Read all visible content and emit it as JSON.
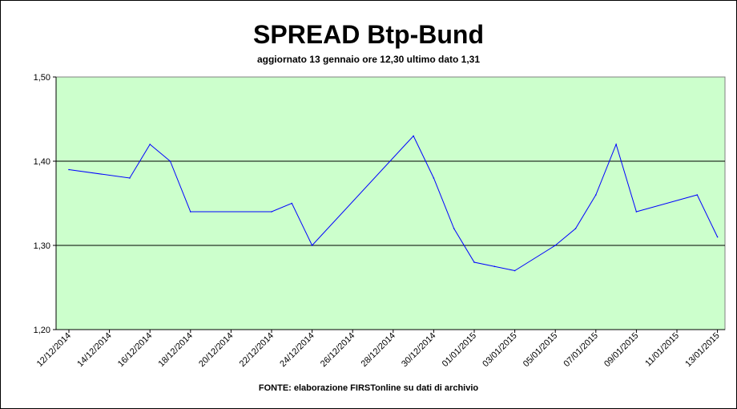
{
  "chart_data": {
    "type": "line",
    "title": "SPREAD Btp-Bund",
    "subtitle": "aggiornato 13 gennaio ore 12,30  ultimo dato  1,31",
    "source": "FONTE: elaborazione FIRSTonline su dati di archivio",
    "xlabel": "",
    "ylabel": "",
    "ylim": [
      1.2,
      1.5
    ],
    "y_ticks": [
      "1,20",
      "1,30",
      "1,40",
      "1,50"
    ],
    "x_ticks": [
      "12/12/2014",
      "14/12/2014",
      "16/12/2014",
      "18/12/2014",
      "20/12/2014",
      "22/12/2014",
      "24/12/2014",
      "26/12/2014",
      "28/12/2014",
      "30/12/2014",
      "01/01/2015",
      "03/01/2015",
      "05/01/2015",
      "07/01/2015",
      "09/01/2015",
      "11/01/2015",
      "13/01/2015"
    ],
    "grid": "horizontal at 1,30 and 1,40",
    "plot_background": "#ccffcc",
    "line_color": "#0000ff",
    "series": [
      {
        "x": [
          "12/12/2014",
          "15/12/2014",
          "16/12/2014",
          "17/12/2014",
          "18/12/2014",
          "22/12/2014",
          "23/12/2014",
          "24/12/2014",
          "29/12/2014",
          "30/12/2014",
          "31/12/2014",
          "01/01/2015",
          "02/01/2015",
          "03/01/2015",
          "05/01/2015",
          "06/01/2015",
          "07/01/2015",
          "08/01/2015",
          "09/01/2015",
          "12/01/2015",
          "13/01/2015"
        ],
        "values": [
          1.39,
          1.38,
          1.42,
          1.4,
          1.34,
          1.34,
          1.35,
          1.3,
          1.43,
          1.38,
          1.32,
          1.28,
          1.275,
          1.27,
          1.3,
          1.32,
          1.36,
          1.42,
          1.34,
          1.36,
          1.31
        ]
      }
    ]
  }
}
